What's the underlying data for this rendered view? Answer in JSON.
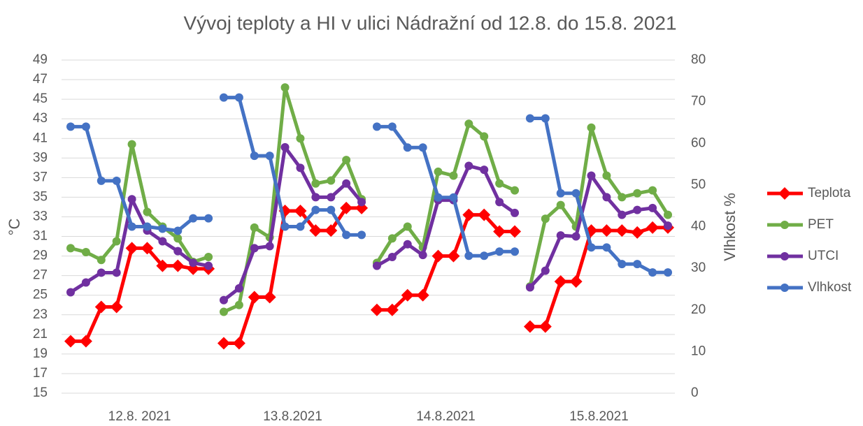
{
  "chart_data": {
    "type": "line",
    "title": "Vývoj teploty a HI v ulici Nádražní od 12.8. do 15.8. 2021",
    "y_label": "°C",
    "y2_label": "Vlhkost %",
    "categories": [
      "12.8. 2021",
      "13.8.2021",
      "14.8.2021",
      "15.8.2021"
    ],
    "ylim": [
      15,
      49
    ],
    "yticks": [
      15,
      17,
      19,
      21,
      23,
      25,
      27,
      29,
      31,
      33,
      35,
      37,
      39,
      41,
      43,
      45,
      47,
      49
    ],
    "y2lim": [
      0,
      80
    ],
    "y2ticks": [
      0,
      10,
      20,
      30,
      40,
      50,
      60,
      70,
      80
    ],
    "grid": true,
    "legend": "right",
    "series": [
      {
        "name": "Teplota",
        "color": "#ff0000",
        "marker": "diamond",
        "values": [
          [
            20.3,
            20.3,
            23.8,
            23.8,
            29.8,
            29.8,
            28,
            28,
            27.7,
            27.7
          ],
          [
            20.1,
            20.1,
            24.8,
            24.8,
            33.6,
            33.6,
            31.6,
            31.6,
            33.9,
            33.9
          ],
          [
            23.5,
            23.5,
            25,
            25,
            29,
            29,
            33.2,
            33.2,
            31.5,
            31.5
          ],
          [
            21.8,
            21.8,
            26.4,
            26.4,
            31.6,
            31.6,
            31.6,
            31.4,
            31.9,
            31.9
          ]
        ]
      },
      {
        "name": "PET",
        "color": "#70ad47",
        "marker": "circle",
        "values": [
          [
            29.8,
            29.4,
            28.6,
            30.5,
            40.4,
            33.5,
            32,
            30.8,
            28.4,
            28.9
          ],
          [
            23.3,
            24,
            31.9,
            30.9,
            46.2,
            41,
            36.4,
            36.7,
            38.8,
            34.8
          ],
          [
            28.3,
            30.8,
            32,
            29.9,
            37.6,
            37.2,
            42.5,
            41.2,
            36.4,
            35.7
          ],
          [
            25.9,
            32.8,
            34.2,
            32,
            42.1,
            37.2,
            35,
            35.4,
            35.7,
            33.2
          ]
        ]
      },
      {
        "name": "UTCI",
        "color": "#7030a0",
        "marker": "circle",
        "values": [
          [
            25.3,
            26.3,
            27.3,
            27.3,
            34.8,
            31.6,
            30.5,
            29.5,
            28.3,
            28
          ],
          [
            24.5,
            25.7,
            29.8,
            30,
            40.1,
            38,
            35,
            35,
            36.4,
            34.5
          ],
          [
            28,
            28.9,
            30.2,
            29.1,
            34.7,
            34.7,
            38.2,
            37.8,
            34.5,
            33.4
          ],
          [
            25.8,
            27.5,
            31.1,
            31,
            37.2,
            35,
            33.2,
            33.7,
            33.9,
            32.1
          ]
        ]
      },
      {
        "name": "Vlhkost",
        "color": "#4472c4",
        "marker": "circle",
        "axis": "y2",
        "values": [
          [
            64,
            64,
            51,
            51,
            40,
            40,
            39.5,
            39,
            42,
            42
          ],
          [
            71,
            71,
            57,
            57,
            40,
            40,
            44,
            44,
            38,
            38
          ],
          [
            64,
            64,
            59,
            59,
            47,
            47,
            33,
            33,
            34,
            34
          ],
          [
            66,
            66,
            48,
            48,
            35,
            35,
            31,
            31,
            29,
            29
          ]
        ]
      }
    ]
  }
}
